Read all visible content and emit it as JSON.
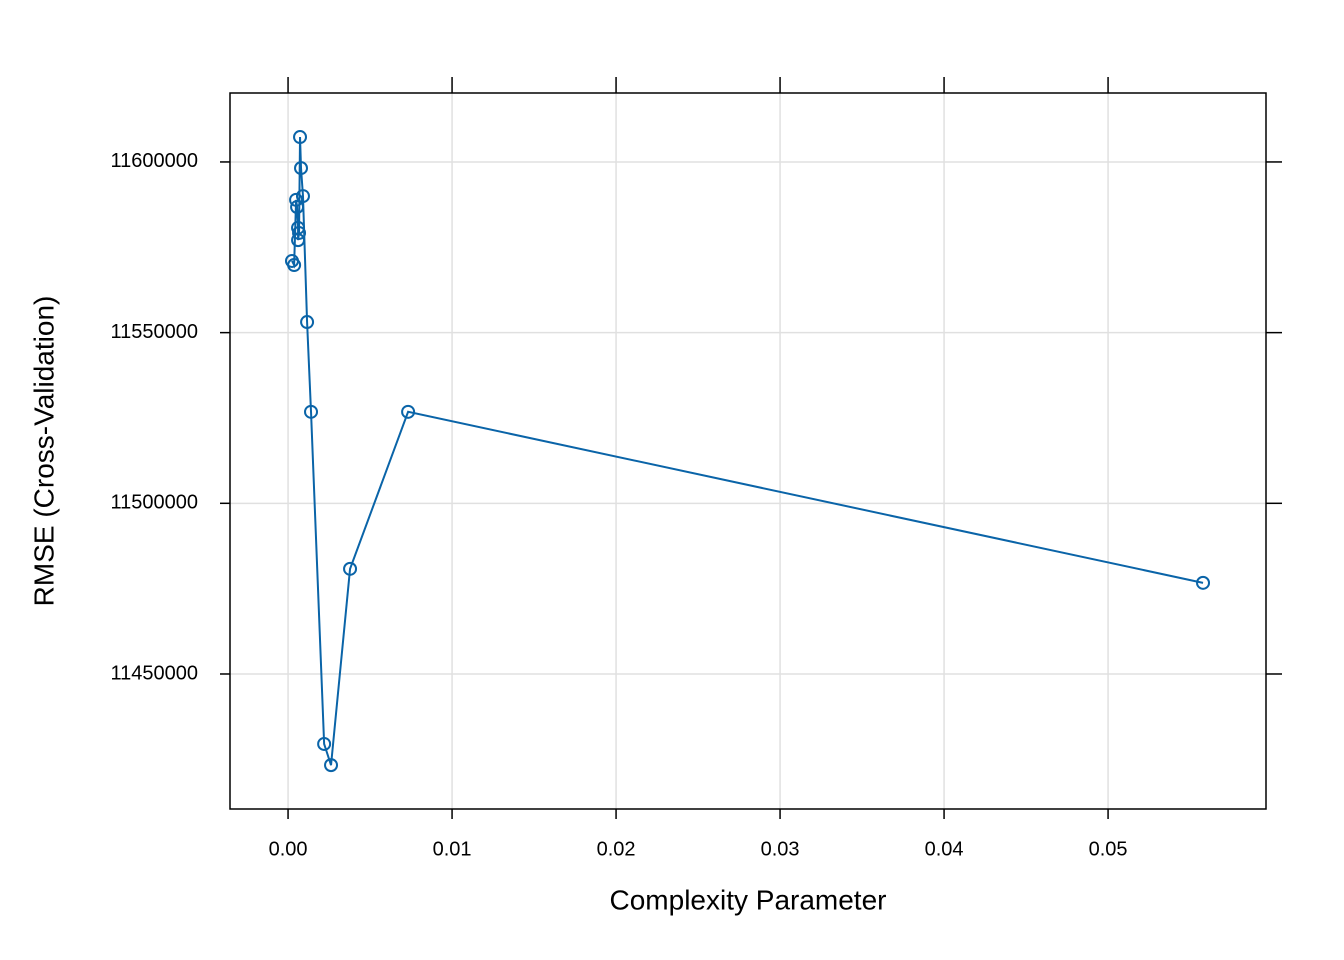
{
  "chart_data": {
    "type": "line",
    "x_label": "Complexity Parameter",
    "y_label": "RMSE (Cross-Validation)",
    "x": [
      0.00024,
      0.00037,
      0.00049,
      0.00055,
      0.00061,
      0.00061,
      0.00067,
      0.00073,
      0.00079,
      0.00091,
      0.00116,
      0.0014,
      0.0022,
      0.00262,
      0.00378,
      0.00732,
      0.05579
    ],
    "series": [
      {
        "name": "RMSE",
        "color": "#0a64a8",
        "values": [
          11571000,
          11569800,
          11588900,
          11586800,
          11580700,
          11577100,
          11579200,
          11607300,
          11598200,
          11590000,
          11553100,
          11526800,
          11429500,
          11423300,
          11480800,
          11526800,
          11476700
        ]
      }
    ],
    "xlim": [
      -0.00354,
      0.05963
    ],
    "ylim": [
      11410450,
      11620200
    ],
    "xticks": [
      {
        "value": 0,
        "label": "0.00"
      },
      0.01,
      0.02,
      0.03,
      0.04,
      0.05
    ],
    "yticks": [
      11450000,
      11500000,
      11550000,
      11600000
    ],
    "grid": true
  }
}
